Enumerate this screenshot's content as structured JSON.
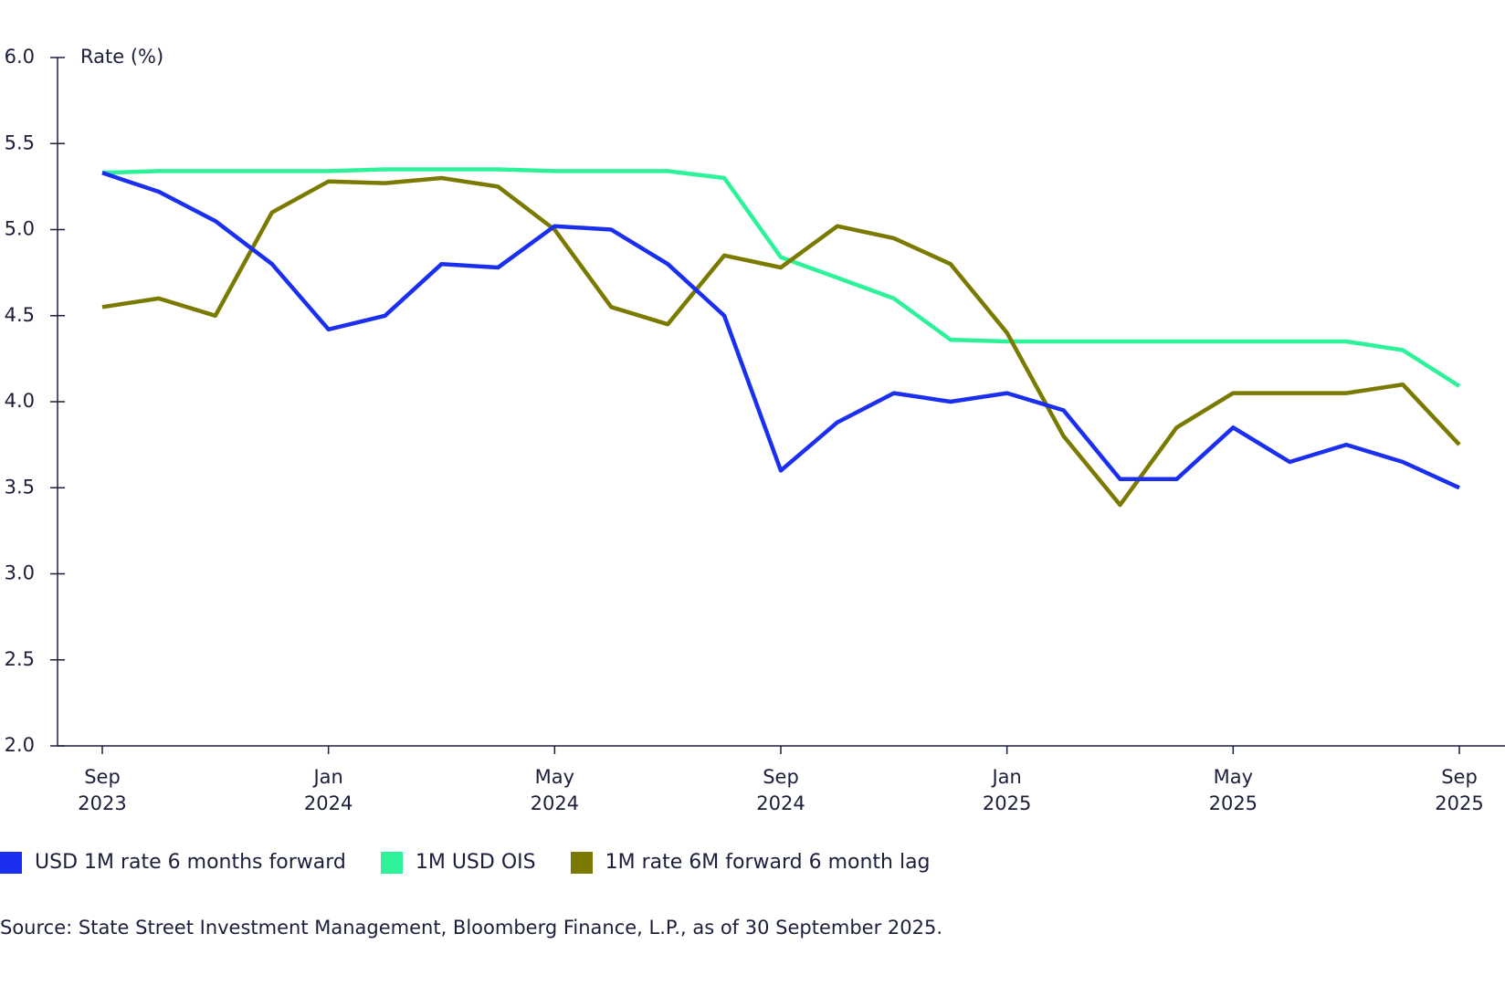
{
  "chart_data": {
    "type": "line",
    "y_label": "Rate (%)",
    "x": [
      "2023-09",
      "2023-10",
      "2023-11",
      "2023-12",
      "2024-01",
      "2024-02",
      "2024-03",
      "2024-04",
      "2024-05",
      "2024-06",
      "2024-07",
      "2024-08",
      "2024-09",
      "2024-10",
      "2024-11",
      "2024-12",
      "2025-01",
      "2025-02",
      "2025-03",
      "2025-04",
      "2025-05",
      "2025-06",
      "2025-07",
      "2025-08",
      "2025-09"
    ],
    "series": [
      {
        "name": "USD 1M rate 6 months forward",
        "color": "#1a2ff0",
        "values": [
          5.33,
          5.22,
          5.05,
          4.8,
          4.42,
          4.5,
          4.8,
          4.78,
          5.02,
          5.0,
          4.8,
          4.5,
          3.6,
          3.88,
          4.05,
          4.0,
          4.05,
          3.95,
          3.55,
          3.55,
          3.85,
          3.65,
          3.75,
          3.65,
          3.5
        ]
      },
      {
        "name": "1M USD OIS",
        "color": "#2ef29a",
        "values": [
          5.33,
          5.34,
          5.34,
          5.34,
          5.34,
          5.35,
          5.35,
          5.35,
          5.34,
          5.34,
          5.34,
          5.3,
          4.84,
          4.72,
          4.6,
          4.36,
          4.35,
          4.35,
          4.35,
          4.35,
          4.35,
          4.35,
          4.35,
          4.3,
          4.09
        ]
      },
      {
        "name": "1M rate 6M forward 6 month lag",
        "color": "#7a7a00",
        "values": [
          4.55,
          4.6,
          4.5,
          5.1,
          5.28,
          5.27,
          5.3,
          5.25,
          5.0,
          4.55,
          4.45,
          4.85,
          4.78,
          5.02,
          4.95,
          4.8,
          4.4,
          3.8,
          3.4,
          3.85,
          4.05,
          4.05,
          4.05,
          4.1,
          3.75
        ]
      }
    ],
    "xlim": [
      "2023-09",
      "2025-09"
    ],
    "xticks": [
      {
        "value": "2023-09",
        "label": "Sep 2023"
      },
      {
        "value": "2024-01",
        "label": "Jan 2024"
      },
      {
        "value": "2024-05",
        "label": "May 2024"
      },
      {
        "value": "2024-09",
        "label": "Sep 2024"
      },
      {
        "value": "2025-01",
        "label": "Jan 2025"
      },
      {
        "value": "2025-05",
        "label": "May 2025"
      },
      {
        "value": "2025-09",
        "label": "Sep 2025"
      }
    ],
    "ylim": [
      2,
      6
    ],
    "yticks": [
      {
        "value": 2,
        "label": "2.0"
      },
      {
        "value": 2.5,
        "label": "2.5"
      },
      {
        "value": 3,
        "label": "3.0"
      },
      {
        "value": 3.5,
        "label": "3.5"
      },
      {
        "value": 4,
        "label": "4.0"
      },
      {
        "value": 4.5,
        "label": "4.5"
      },
      {
        "value": 5,
        "label": "5.0"
      },
      {
        "value": 5.5,
        "label": "5.5"
      },
      {
        "value": 6,
        "label": "6.0"
      }
    ],
    "source": "Source: State Street Investment Management, Bloomberg Finance, L.P., as of 30 September 2025."
  }
}
